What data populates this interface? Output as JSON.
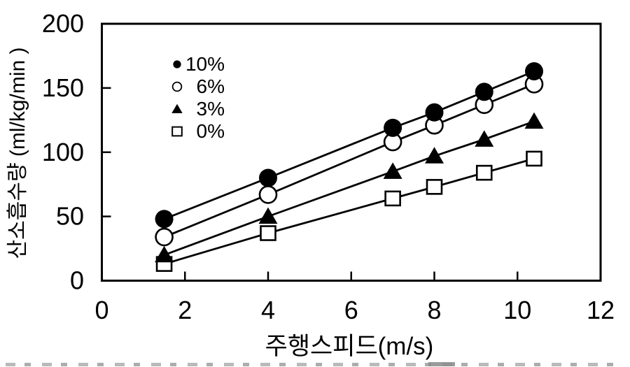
{
  "chart_data": {
    "type": "scatter",
    "title": "",
    "xlabel": "주행스피드(m/s)",
    "ylabel": "산소흡수량 (ml/kg/min )",
    "xlim": [
      0,
      12
    ],
    "ylim": [
      0,
      200
    ],
    "x_ticks": [
      0,
      2,
      4,
      6,
      8,
      10,
      12
    ],
    "y_ticks": [
      0,
      50,
      100,
      150,
      200
    ],
    "grid": false,
    "legend_position": "upper-left-inside",
    "x": [
      1.5,
      4,
      7,
      8,
      9.2,
      10.4
    ],
    "series": [
      {
        "name": "10%",
        "marker": "filled-circle",
        "values": [
          48,
          80,
          119,
          131,
          147,
          163
        ]
      },
      {
        "name": "6%",
        "marker": "open-circle",
        "values": [
          34,
          67,
          108,
          121,
          137,
          153
        ]
      },
      {
        "name": "3%",
        "marker": "filled-triangle",
        "values": [
          20,
          50,
          85,
          97,
          110,
          124
        ]
      },
      {
        "name": "0%",
        "marker": "open-square",
        "values": [
          13,
          37,
          64,
          73,
          84,
          95
        ]
      }
    ],
    "legend": [
      {
        "marker": "filled-circle",
        "label": "10%"
      },
      {
        "marker": "open-circle",
        "label": "6%"
      },
      {
        "marker": "filled-triangle",
        "label": "3%"
      },
      {
        "marker": "open-square",
        "label": "0%"
      }
    ],
    "colors": {
      "foreground": "#000000",
      "background": "#ffffff"
    }
  }
}
